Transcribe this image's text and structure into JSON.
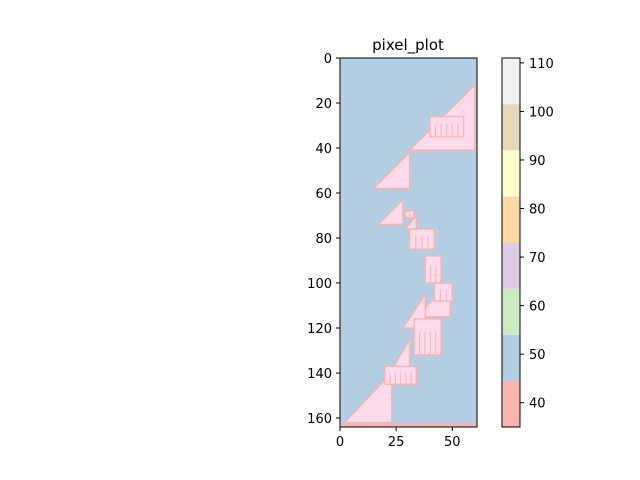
{
  "chart_data": {
    "type": "heatmap",
    "title": "pixel_plot",
    "xlabel": "",
    "ylabel": "",
    "x_range": [
      0,
      61
    ],
    "y_range": [
      0,
      164
    ],
    "y_inverted": true,
    "x_ticks": [
      0,
      25,
      50
    ],
    "y_ticks": [
      0,
      20,
      40,
      60,
      80,
      100,
      120,
      140,
      160
    ],
    "background_value": 50,
    "colormap": "Pastel1",
    "colorbar": {
      "range": [
        35,
        111
      ],
      "ticks": [
        40,
        50,
        60,
        70,
        80,
        90,
        100,
        110
      ],
      "bands": [
        {
          "from": 35.0,
          "to": 44.5,
          "color": "#fbb4ae"
        },
        {
          "from": 44.5,
          "to": 54.0,
          "color": "#b3cde3"
        },
        {
          "from": 54.0,
          "to": 63.5,
          "color": "#ccebc5"
        },
        {
          "from": 63.5,
          "to": 73.0,
          "color": "#decbe4"
        },
        {
          "from": 73.0,
          "to": 82.5,
          "color": "#fed9a6"
        },
        {
          "from": 82.5,
          "to": 92.0,
          "color": "#ffffcc"
        },
        {
          "from": 92.0,
          "to": 101.5,
          "color": "#e5d8bd"
        },
        {
          "from": 101.5,
          "to": 111.0,
          "color": "#fddaec"
        }
      ],
      "top_color": "#f2f2f2"
    },
    "triangles": [
      {
        "apex_x": 60,
        "apex_y": 12,
        "base_left_x": 31,
        "base_y": 41
      },
      {
        "apex_x": 31,
        "apex_y": 42,
        "base_left_x": 15,
        "base_y": 58
      },
      {
        "apex_x": 28,
        "apex_y": 63,
        "base_left_x": 17,
        "base_y": 74
      },
      {
        "apex_x": 34,
        "apex_y": 70,
        "base_left_x": 29,
        "base_y": 76
      },
      {
        "apex_x": 40,
        "apex_y": 90,
        "base_left_x": 38,
        "base_y": 92
      },
      {
        "apex_x": 49,
        "apex_y": 100,
        "base_left_x": 34,
        "base_y": 115
      },
      {
        "apex_x": 38,
        "apex_y": 105,
        "base_left_x": 28,
        "base_y": 120
      },
      {
        "apex_x": 31,
        "apex_y": 125,
        "base_left_x": 20,
        "base_y": 144
      },
      {
        "apex_x": 23,
        "apex_y": 140,
        "base_left_x": 2,
        "base_y": 162
      }
    ],
    "blocks": [
      {
        "x0": 40,
        "y0": 26,
        "x1": 55,
        "y1": 35,
        "value": 110
      },
      {
        "x0": 29,
        "y0": 68,
        "x1": 33,
        "y1": 71,
        "value": 110
      },
      {
        "x0": 31,
        "y0": 76,
        "x1": 42,
        "y1": 85,
        "value": 110
      },
      {
        "x0": 38,
        "y0": 88,
        "x1": 45,
        "y1": 100,
        "value": 110
      },
      {
        "x0": 42,
        "y0": 100,
        "x1": 50,
        "y1": 108,
        "value": 110
      },
      {
        "x0": 33,
        "y0": 116,
        "x1": 45,
        "y1": 132,
        "value": 110
      },
      {
        "x0": 20,
        "y0": 137,
        "x1": 34,
        "y1": 145,
        "value": 110
      }
    ],
    "outline_value": 40,
    "bottom_row_value": 40
  }
}
